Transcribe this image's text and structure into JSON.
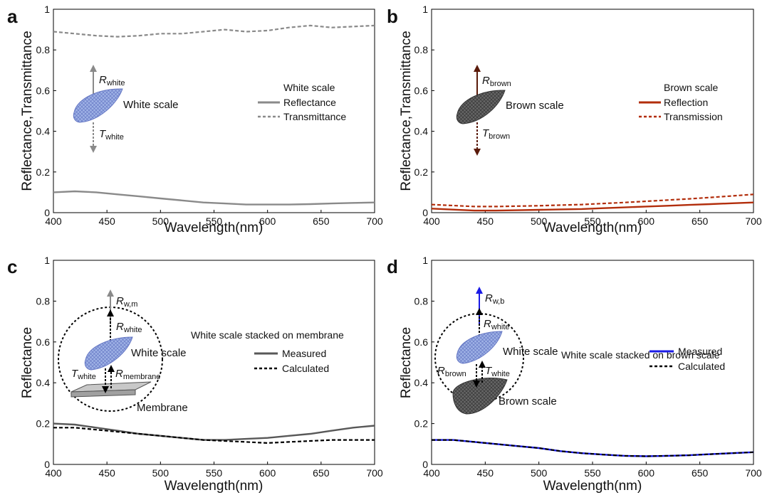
{
  "colors": {
    "gray_line": "#8a8a8a",
    "dark_gray": "#585858",
    "brown": "#b22d0b",
    "blue": "#1a1ae6",
    "black": "#000000",
    "arrow_brown": "#5a1a0a",
    "scale_blue": "#8fa3dc",
    "scale_dark": "#555555"
  },
  "icons": [
    "white-scale-icon",
    "brown-scale-icon",
    "membrane-icon",
    "arrow-icon"
  ],
  "chart_data": [
    {
      "panel": "a",
      "type": "line",
      "xlabel": "Wavelength(nm)",
      "ylabel": "Reflectance,Transmittance",
      "xlim": [
        400,
        700
      ],
      "ylim": [
        0,
        1
      ],
      "xticks": [
        "400",
        "450",
        "500",
        "550",
        "600",
        "650",
        "700"
      ],
      "yticks": [
        "0",
        "0.2",
        "0.4",
        "0.6",
        "0.8",
        "1"
      ],
      "legend_title": "White scale",
      "legend_placement": "right",
      "annotations": {
        "scale_label": "White scale",
        "r_main": "R",
        "r_sub": "white",
        "t_main": "T",
        "t_sub": "white"
      },
      "series": [
        {
          "name": "Reflectance",
          "style": "solid",
          "color": "#8a8a8a",
          "x": [
            400,
            420,
            440,
            460,
            480,
            500,
            520,
            540,
            560,
            580,
            600,
            620,
            640,
            660,
            680,
            700
          ],
          "y": [
            0.1,
            0.105,
            0.1,
            0.09,
            0.08,
            0.07,
            0.06,
            0.05,
            0.045,
            0.04,
            0.04,
            0.04,
            0.042,
            0.045,
            0.048,
            0.05
          ]
        },
        {
          "name": "Transmittance",
          "style": "dashed",
          "color": "#8a8a8a",
          "x": [
            400,
            420,
            440,
            460,
            480,
            500,
            520,
            540,
            560,
            580,
            600,
            620,
            640,
            660,
            680,
            700
          ],
          "y": [
            0.89,
            0.88,
            0.87,
            0.865,
            0.87,
            0.88,
            0.88,
            0.89,
            0.9,
            0.89,
            0.895,
            0.91,
            0.92,
            0.91,
            0.915,
            0.92
          ]
        }
      ]
    },
    {
      "panel": "b",
      "type": "line",
      "xlabel": "Wavelength(nm)",
      "ylabel": "Reflectance,Transmittance",
      "xlim": [
        400,
        700
      ],
      "ylim": [
        0,
        1
      ],
      "xticks": [
        "400",
        "450",
        "500",
        "550",
        "600",
        "650",
        "700"
      ],
      "yticks": [
        "0",
        "0.2",
        "0.4",
        "0.6",
        "0.8",
        "1"
      ],
      "legend_title": "Brown scale",
      "legend_placement": "right",
      "annotations": {
        "scale_label": "Brown scale",
        "r_main": "R",
        "r_sub": "brown",
        "t_main": "T",
        "t_sub": "brown"
      },
      "series": [
        {
          "name": "Reflection",
          "style": "solid",
          "color": "#b22d0b",
          "x": [
            400,
            420,
            440,
            460,
            480,
            500,
            520,
            540,
            560,
            580,
            600,
            620,
            640,
            660,
            680,
            700
          ],
          "y": [
            0.02,
            0.015,
            0.01,
            0.01,
            0.012,
            0.014,
            0.016,
            0.018,
            0.022,
            0.026,
            0.03,
            0.034,
            0.038,
            0.042,
            0.046,
            0.05
          ]
        },
        {
          "name": "Transmission",
          "style": "dashed",
          "color": "#b22d0b",
          "x": [
            400,
            420,
            440,
            460,
            480,
            500,
            520,
            540,
            560,
            580,
            600,
            620,
            640,
            660,
            680,
            700
          ],
          "y": [
            0.04,
            0.035,
            0.03,
            0.03,
            0.032,
            0.034,
            0.037,
            0.04,
            0.045,
            0.05,
            0.056,
            0.062,
            0.068,
            0.075,
            0.082,
            0.09
          ]
        }
      ]
    },
    {
      "panel": "c",
      "type": "line",
      "xlabel": "Wavelength(nm)",
      "ylabel": "Reflectance",
      "xlim": [
        400,
        700
      ],
      "ylim": [
        0,
        1
      ],
      "xticks": [
        "400",
        "450",
        "500",
        "550",
        "600",
        "650",
        "700"
      ],
      "yticks": [
        "0",
        "0.2",
        "0.4",
        "0.6",
        "0.8",
        "1"
      ],
      "legend_title": "White scale stacked on membrane",
      "legend_placement": "right",
      "annotations": {
        "scale_label": "White scale",
        "membrane_label": "Membrane",
        "r_top_main": "R",
        "r_top_sub": "w,m",
        "r_main": "R",
        "r_sub": "white",
        "t_main": "T",
        "t_sub": "white",
        "r_low_main": "R",
        "r_low_sub": "membrane"
      },
      "series": [
        {
          "name": "Measured",
          "style": "solid",
          "color": "#585858",
          "x": [
            400,
            420,
            440,
            460,
            480,
            500,
            520,
            540,
            560,
            580,
            600,
            620,
            640,
            660,
            680,
            700
          ],
          "y": [
            0.2,
            0.195,
            0.18,
            0.165,
            0.15,
            0.14,
            0.13,
            0.12,
            0.12,
            0.125,
            0.13,
            0.14,
            0.15,
            0.165,
            0.18,
            0.19
          ]
        },
        {
          "name": "Calculated",
          "style": "dashed",
          "color": "#000000",
          "x": [
            400,
            420,
            440,
            460,
            480,
            500,
            520,
            540,
            560,
            580,
            600,
            620,
            640,
            660,
            680,
            700
          ],
          "y": [
            0.18,
            0.18,
            0.17,
            0.16,
            0.15,
            0.14,
            0.13,
            0.12,
            0.115,
            0.11,
            0.105,
            0.11,
            0.115,
            0.12,
            0.12,
            0.12
          ]
        }
      ]
    },
    {
      "panel": "d",
      "type": "line",
      "xlabel": "Wavelength(nm)",
      "ylabel": "Reflectance",
      "xlim": [
        400,
        700
      ],
      "ylim": [
        0,
        1
      ],
      "xticks": [
        "400",
        "450",
        "500",
        "550",
        "600",
        "650",
        "700"
      ],
      "yticks": [
        "0",
        "0.2",
        "0.4",
        "0.6",
        "0.8",
        "1"
      ],
      "legend_title": "White scale stacked on brown scale",
      "legend_placement": "right",
      "annotations": {
        "scale_label": "White scale",
        "brown_label": "Brown scale",
        "r_top_main": "R",
        "r_top_sub": "w,b",
        "r_main": "R",
        "r_sub": "white",
        "t_main": "T",
        "t_sub": "white",
        "r_low_main": "R",
        "r_low_sub": "brown"
      },
      "series": [
        {
          "name": "Measured",
          "style": "solid",
          "color": "#1a1ae6",
          "x": [
            400,
            420,
            440,
            460,
            480,
            500,
            520,
            540,
            560,
            580,
            600,
            620,
            640,
            660,
            680,
            700
          ],
          "y": [
            0.12,
            0.12,
            0.11,
            0.1,
            0.09,
            0.08,
            0.065,
            0.055,
            0.048,
            0.042,
            0.04,
            0.042,
            0.045,
            0.05,
            0.055,
            0.06
          ]
        },
        {
          "name": "Calculated",
          "style": "dashed",
          "color": "#000000",
          "x": [
            400,
            420,
            440,
            460,
            480,
            500,
            520,
            540,
            560,
            580,
            600,
            620,
            640,
            660,
            680,
            700
          ],
          "y": [
            0.12,
            0.12,
            0.11,
            0.1,
            0.09,
            0.08,
            0.065,
            0.055,
            0.048,
            0.042,
            0.04,
            0.042,
            0.045,
            0.05,
            0.055,
            0.06
          ]
        }
      ]
    }
  ]
}
